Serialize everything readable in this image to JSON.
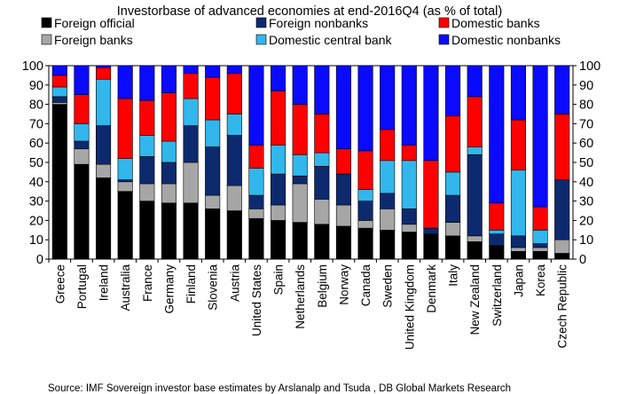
{
  "chart_data": {
    "type": "bar",
    "stacked": true,
    "title": "Investorbase of advanced economies at end-2016Q4 (as % of total)",
    "categories": [
      "Greece",
      "Portugal",
      "Ireland",
      "Australia",
      "France",
      "Germany",
      "Finland",
      "Slovenia",
      "Austria",
      "United States",
      "Spain",
      "Netherlands",
      "Belgium",
      "Norway",
      "Canada",
      "Sweden",
      "United Kingdom",
      "Denmark",
      "Italy",
      "New Zealand",
      "Switzerland",
      "Japan",
      "Korea",
      "Czech Republic"
    ],
    "series": [
      {
        "name": "Foreign official",
        "color": "#000000",
        "values": [
          80,
          49,
          42,
          35,
          30,
          29,
          29,
          26,
          25,
          21,
          20,
          19,
          18,
          17,
          16,
          15,
          14,
          13,
          12,
          9,
          7,
          4,
          4,
          3
        ]
      },
      {
        "name": "Foreign banks",
        "color": "#a6a6a6",
        "values": [
          1,
          8,
          7,
          5,
          9,
          10,
          21,
          7,
          13,
          5,
          8,
          20,
          13,
          11,
          4,
          11,
          4,
          0,
          7,
          3,
          0,
          2,
          2,
          7
        ]
      },
      {
        "name": "Foreign nonbanks",
        "color": "#0d2a6e",
        "values": [
          3,
          4,
          20,
          1,
          14,
          11,
          19,
          25,
          26,
          7,
          16,
          4,
          17,
          16,
          10,
          8,
          8,
          3,
          14,
          42,
          6,
          6,
          2,
          31
        ]
      },
      {
        "name": "Domestic central bank",
        "color": "#31b7ec",
        "values": [
          5,
          9,
          24,
          11,
          11,
          11,
          14,
          14,
          11,
          14,
          15,
          11,
          7,
          0,
          6,
          17,
          25,
          0,
          12,
          4,
          2,
          34,
          7,
          0
        ]
      },
      {
        "name": "Domestic banks",
        "color": "#ff0000",
        "values": [
          6,
          15,
          6,
          31,
          18,
          25,
          13,
          22,
          21,
          12,
          28,
          26,
          20,
          13,
          20,
          16,
          8,
          35,
          29,
          26,
          14,
          26,
          12,
          34
        ]
      },
      {
        "name": "Domestic nonbanks",
        "color": "#0a0aff",
        "values": [
          5,
          15,
          1,
          17,
          18,
          14,
          4,
          6,
          4,
          41,
          13,
          20,
          25,
          43,
          44,
          33,
          41,
          49,
          26,
          16,
          71,
          28,
          73,
          25
        ]
      }
    ],
    "ylim": [
      0,
      100
    ],
    "yticks": [
      0,
      10,
      20,
      30,
      40,
      50,
      60,
      70,
      80,
      90,
      100
    ],
    "y_axis_both_sides": true,
    "grid": false,
    "legend_position": "top"
  },
  "footer": {
    "source": "Source:  IMF Sovereign investor base estimates by Arslanalp and Tsuda , DB Global Markets Research"
  }
}
